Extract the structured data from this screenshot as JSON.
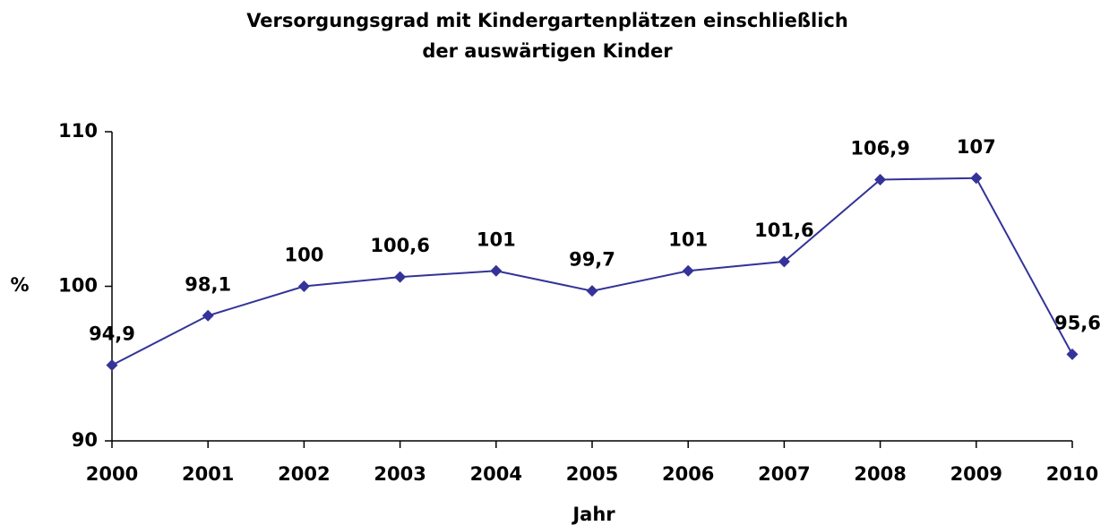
{
  "chart_data": {
    "type": "line",
    "title": [
      "Versorgungsgrad mit Kindergartenplätzen einschließlich",
      "der auswärtigen Kinder"
    ],
    "xlabel": "Jahr",
    "ylabel": "%",
    "categories": [
      "2000",
      "2001",
      "2002",
      "2003",
      "2004",
      "2005",
      "2006",
      "2007",
      "2008",
      "2009",
      "2010"
    ],
    "series": [
      {
        "name": "Versorgungsgrad",
        "color": "#333399",
        "values": [
          94.9,
          98.1,
          100,
          100.6,
          101,
          99.7,
          101,
          101.6,
          106.9,
          107,
          95.6
        ],
        "value_labels": [
          "94,9",
          "98,1",
          "100",
          "100,6",
          "101",
          "99,7",
          "101",
          "101,6",
          "106,9",
          "107",
          "95,6"
        ]
      }
    ],
    "ylim": [
      90,
      110
    ],
    "yticks": [
      90,
      100,
      110
    ],
    "grid": false
  }
}
